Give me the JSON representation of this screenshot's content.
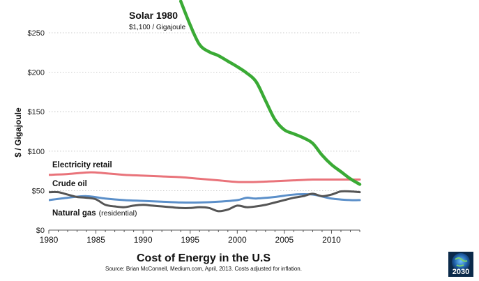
{
  "chart_data": {
    "type": "line",
    "title": "Cost of Energy in the U.S",
    "ylabel": "$ / Gigajoule",
    "xlabel": "",
    "xlim": [
      1980,
      2013
    ],
    "ylim": [
      0,
      260
    ],
    "x_ticks": [
      1980,
      1985,
      1990,
      1995,
      2000,
      2005,
      2010
    ],
    "y_ticks": [
      {
        "value": 0,
        "label": "$0"
      },
      {
        "value": 50,
        "label": "$50"
      },
      {
        "value": 100,
        "label": "$100"
      },
      {
        "value": 150,
        "label": "$150"
      },
      {
        "value": 200,
        "label": "$200"
      },
      {
        "value": 250,
        "label": "$250"
      }
    ],
    "grid": true,
    "source_note": "Source: Brian McConnell, Medium.com, April, 2013. Costs adjusted for inflation.",
    "annotation": {
      "title": "Solar 1980",
      "subtitle": "$1,100 / Gigajoule"
    },
    "series": [
      {
        "name": "Solar",
        "label": "",
        "color": "#3aaa35",
        "x": [
          1994,
          1995,
          1996,
          1997,
          1998,
          1999,
          2000,
          2001,
          2002,
          2003,
          2004,
          2005,
          2006,
          2007,
          2008,
          2009,
          2010,
          2011,
          2012,
          2013
        ],
        "values": [
          290,
          260,
          235,
          226,
          221,
          214,
          207,
          199,
          188,
          164,
          140,
          127,
          122,
          117,
          110,
          95,
          83,
          74,
          65,
          58
        ]
      },
      {
        "name": "Electricity retail",
        "label": "Electricity retail",
        "note": "",
        "color": "#e9737a",
        "x": [
          1980,
          1982,
          1984,
          1985,
          1986,
          1988,
          1990,
          1992,
          1994,
          1996,
          1998,
          2000,
          2002,
          2004,
          2006,
          2008,
          2010,
          2013
        ],
        "values": [
          70,
          71,
          73,
          73,
          72,
          70,
          69,
          68,
          67,
          65,
          63,
          61,
          61,
          62,
          63,
          64,
          64,
          64
        ]
      },
      {
        "name": "Crude oil",
        "label": "Crude oil",
        "note": "",
        "color": "#555555",
        "x": [
          1980,
          1981,
          1982,
          1983,
          1984,
          1985,
          1986,
          1987,
          1988,
          1989,
          1990,
          1991,
          1992,
          1993,
          1994,
          1995,
          1996,
          1997,
          1998,
          1999,
          2000,
          2001,
          2002,
          2003,
          2004,
          2005,
          2006,
          2007,
          2008,
          2009,
          2010,
          2011,
          2012,
          2013
        ],
        "values": [
          48,
          48,
          45,
          42,
          41,
          39,
          32,
          30,
          29,
          31,
          32,
          31,
          30,
          29,
          28,
          28,
          29,
          28,
          24,
          26,
          31,
          29,
          30,
          32,
          35,
          38,
          41,
          43,
          46,
          43,
          45,
          49,
          49,
          48
        ]
      },
      {
        "name": "Natural gas",
        "label": "Natural gas",
        "note": "(residential)",
        "color": "#5b8fc9",
        "x": [
          1980,
          1982,
          1984,
          1986,
          1988,
          1990,
          1992,
          1994,
          1996,
          1998,
          2000,
          2001,
          2002,
          2004,
          2006,
          2008,
          2010,
          2012,
          2013
        ],
        "values": [
          38,
          41,
          43,
          40,
          38,
          37,
          36,
          35,
          35,
          36,
          38,
          41,
          40,
          42,
          45,
          45,
          40,
          38,
          38
        ]
      }
    ]
  },
  "logo": {
    "text": "2030"
  }
}
